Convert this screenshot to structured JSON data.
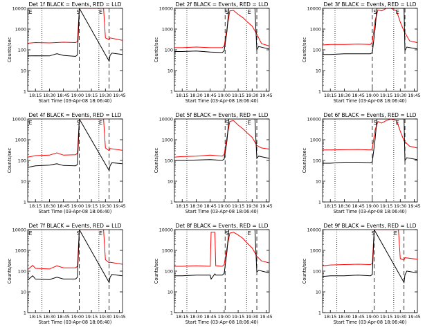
{
  "chart_data": [
    {
      "type": "line",
      "title": "Det 1f BLACK = Events, RED = LLD",
      "xlabel": "Start Time (03-Apr-08 18:06:40)",
      "ylabel": "Counts/sec",
      "xticks": [
        "18:15",
        "18:30",
        "18:45",
        "19:00",
        "19:15",
        "19:30",
        "19:45"
      ],
      "yticks": [
        "1",
        "10",
        "100",
        "1000",
        "10000"
      ],
      "ylim": [
        1,
        12000
      ],
      "yscale": "log",
      "xlim": [
        "18:06:40",
        "19:48:20"
      ],
      "markers": [
        {
          "label": "E",
          "x": "18:06:40"
        },
        {
          "label": "S",
          "x": "19:01:00"
        },
        {
          "label": "E",
          "x": "19:25:00"
        }
      ],
      "dashed_lines": [
        "19:02:00",
        "19:34:00"
      ],
      "dotted_lines": [
        "18:22:00",
        "19:23:00"
      ],
      "series": [
        {
          "color": "#ff0000",
          "x": [
            "18:06:40",
            "18:15",
            "18:30",
            "18:45",
            "18:58",
            "19:00",
            "19:02",
            "19:28",
            "19:30",
            "19:34",
            "19:35",
            "19:48"
          ],
          "y": [
            230,
            250,
            240,
            260,
            250,
            280,
            12000,
            12000,
            420,
            350,
            420,
            320
          ]
        },
        {
          "color": "#000000",
          "x": [
            "18:06:40",
            "18:15",
            "18:30",
            "18:38",
            "18:45",
            "18:58",
            "19:00",
            "19:02",
            "19:34",
            "19:35",
            "19:37",
            "19:48"
          ],
          "y": [
            55,
            56,
            55,
            70,
            58,
            52,
            62,
            12000,
            30,
            58,
            75,
            65
          ]
        }
      ]
    },
    {
      "type": "line",
      "title": "Det 2f BLACK = Events, RED = LLD",
      "xlabel": "Start Time (03-Apr-08 18:06:40)",
      "ylabel": "Counts/sec",
      "xticks": [
        "18:15",
        "18:30",
        "18:45",
        "19:00",
        "19:15",
        "19:30",
        "19:45"
      ],
      "yticks": [
        "1",
        "10",
        "100",
        "1000",
        "10000"
      ],
      "ylim": [
        1,
        12000
      ],
      "yscale": "log",
      "xlim": [
        "18:06:40",
        "19:48:20"
      ],
      "markers": [
        {
          "label": "S",
          "x": "19:03:00"
        },
        {
          "label": "E",
          "x": "19:27:00"
        }
      ],
      "dashed_lines": [
        "19:01:00",
        "19:35:00"
      ],
      "dotted_lines": [
        "18:20:00",
        "19:24:00"
      ],
      "series": [
        {
          "color": "#ff0000",
          "x": [
            "18:06:40",
            "18:15",
            "18:30",
            "18:45",
            "18:58",
            "19:00",
            "19:03",
            "19:06",
            "19:10",
            "19:15",
            "19:20",
            "19:25",
            "19:30",
            "19:35",
            "19:40",
            "19:48"
          ],
          "y": [
            140,
            140,
            150,
            140,
            140,
            170,
            1200,
            9000,
            9500,
            6000,
            4200,
            2500,
            1600,
            650,
            220,
            170
          ]
        },
        {
          "color": "#000000",
          "x": [
            "18:06:40",
            "18:15",
            "18:30",
            "18:45",
            "18:58",
            "19:00",
            "19:03",
            "19:05",
            "19:33",
            "19:35",
            "19:37",
            "19:48"
          ],
          "y": [
            90,
            90,
            95,
            85,
            80,
            100,
            900,
            12000,
            12000,
            110,
            160,
            120
          ]
        }
      ]
    },
    {
      "type": "line",
      "title": "Det 3f BLACK = Events, RED = LLD",
      "xlabel": "Start Time (03-Apr-08 18:06:40)",
      "ylabel": "Counts/sec",
      "xticks": [
        "18:15",
        "18:30",
        "18:45",
        "19:00",
        "19:15",
        "19:30",
        "19:45"
      ],
      "yticks": [
        "1",
        "10",
        "100",
        "1000",
        "10000"
      ],
      "ylim": [
        1,
        12000
      ],
      "yscale": "log",
      "xlim": [
        "18:06:40",
        "19:48:20"
      ],
      "markers": [
        {
          "label": "S",
          "x": "19:03:00"
        },
        {
          "label": "E",
          "x": "19:27:00"
        }
      ],
      "dashed_lines": [
        "19:00:00",
        "19:35:00"
      ],
      "dotted_lines": [
        "18:20:00",
        "19:23:00"
      ],
      "series": [
        {
          "color": "#ff0000",
          "x": [
            "18:06:40",
            "18:15",
            "18:30",
            "18:45",
            "18:58",
            "19:00",
            "19:03",
            "19:06",
            "19:10",
            "19:15",
            "19:20",
            "19:26",
            "19:30",
            "19:34",
            "19:40",
            "19:48"
          ],
          "y": [
            190,
            200,
            200,
            210,
            200,
            260,
            3000,
            10000,
            9000,
            12000,
            12000,
            9000,
            2500,
            900,
            300,
            250
          ]
        },
        {
          "color": "#000000",
          "x": [
            "18:06:40",
            "18:15",
            "18:30",
            "18:45",
            "18:58",
            "19:00",
            "19:03",
            "19:05",
            "19:34",
            "19:35",
            "19:37",
            "19:48"
          ],
          "y": [
            65,
            65,
            70,
            70,
            70,
            80,
            1200,
            12000,
            12000,
            100,
            150,
            120
          ]
        }
      ]
    },
    {
      "type": "line",
      "title": "Det 4f BLACK = Events, RED = LLD",
      "xlabel": "Start Time (03-Apr-08 18:06:40)",
      "ylabel": "Counts/sec",
      "xticks": [
        "18:15",
        "18:30",
        "18:45",
        "19:00",
        "19:15",
        "19:30",
        "19:45"
      ],
      "yticks": [
        "1",
        "10",
        "100",
        "1000",
        "10000"
      ],
      "ylim": [
        1,
        12000
      ],
      "yscale": "log",
      "xlim": [
        "18:06:40",
        "19:48:20"
      ],
      "markers": [
        {
          "label": "E",
          "x": "18:06:40"
        },
        {
          "label": "S",
          "x": "19:01:00"
        },
        {
          "label": "E",
          "x": "19:25:00"
        }
      ],
      "dashed_lines": [
        "19:02:00",
        "19:34:00"
      ],
      "dotted_lines": [
        "18:22:00",
        "19:23:00"
      ],
      "series": [
        {
          "color": "#ff0000",
          "x": [
            "18:06:40",
            "18:15",
            "18:30",
            "18:38",
            "18:45",
            "18:58",
            "19:00",
            "19:02",
            "19:28",
            "19:30",
            "19:34",
            "19:35",
            "19:48"
          ],
          "y": [
            160,
            190,
            200,
            260,
            200,
            210,
            250,
            12000,
            12000,
            450,
            330,
            420,
            350
          ]
        },
        {
          "color": "#000000",
          "x": [
            "18:06:40",
            "18:15",
            "18:30",
            "18:38",
            "18:45",
            "18:58",
            "19:00",
            "19:02",
            "19:34",
            "19:35",
            "19:37",
            "19:48"
          ],
          "y": [
            50,
            60,
            65,
            75,
            62,
            60,
            70,
            12000,
            35,
            60,
            85,
            75
          ]
        }
      ]
    },
    {
      "type": "line",
      "title": "Det 5f BLACK = Events, RED = LLD",
      "xlabel": "Start Time (03-Apr-08 18:06:40)",
      "ylabel": "Counts/sec",
      "xticks": [
        "18:15",
        "18:30",
        "18:45",
        "19:00",
        "19:15",
        "19:30",
        "19:45"
      ],
      "yticks": [
        "1",
        "10",
        "100",
        "1000",
        "10000"
      ],
      "ylim": [
        1,
        12000
      ],
      "yscale": "log",
      "xlim": [
        "18:06:40",
        "19:48:20"
      ],
      "markers": [
        {
          "label": "S",
          "x": "19:03:00"
        },
        {
          "label": "E",
          "x": "19:27:00"
        }
      ],
      "dashed_lines": [
        "19:01:00",
        "19:35:00"
      ],
      "dotted_lines": [
        "18:20:00",
        "19:24:00"
      ],
      "series": [
        {
          "color": "#ff0000",
          "x": [
            "18:06:40",
            "18:15",
            "18:30",
            "18:45",
            "18:58",
            "19:00",
            "19:03",
            "19:06",
            "19:10",
            "19:15",
            "19:20",
            "19:25",
            "19:30",
            "19:35",
            "19:40",
            "19:48"
          ],
          "y": [
            160,
            170,
            180,
            200,
            180,
            220,
            1500,
            9000,
            10000,
            6000,
            4000,
            2400,
            1500,
            600,
            450,
            400
          ]
        },
        {
          "color": "#000000",
          "x": [
            "18:06:40",
            "18:15",
            "18:30",
            "18:45",
            "18:58",
            "19:00",
            "19:03",
            "19:05",
            "19:33",
            "19:35",
            "19:37",
            "19:48"
          ],
          "y": [
            110,
            110,
            115,
            120,
            110,
            130,
            1000,
            12000,
            12000,
            140,
            180,
            140
          ]
        }
      ]
    },
    {
      "type": "line",
      "title": "Det 6f BLACK = Events, RED = LLD",
      "xlabel": "Start Time (03-Apr-08 18:06:40)",
      "ylabel": "Counts/sec",
      "xticks": [
        "18:15",
        "18:30",
        "18:45",
        "19:00",
        "19:15",
        "19:30",
        "19:45"
      ],
      "yticks": [
        "1",
        "10",
        "100",
        "1000",
        "10000"
      ],
      "ylim": [
        1,
        12000
      ],
      "yscale": "log",
      "xlim": [
        "18:06:40",
        "19:48:20"
      ],
      "markers": [
        {
          "label": "S",
          "x": "19:03:00"
        },
        {
          "label": "E",
          "x": "19:27:00"
        }
      ],
      "dashed_lines": [
        "19:00:00",
        "19:35:00"
      ],
      "dotted_lines": [
        "18:20:00",
        "19:23:00"
      ],
      "series": [
        {
          "color": "#ff0000",
          "x": [
            "18:06:40",
            "18:15",
            "18:30",
            "18:45",
            "18:58",
            "19:00",
            "19:03",
            "19:06",
            "19:10",
            "19:15",
            "19:20",
            "19:26",
            "19:30",
            "19:34",
            "19:40",
            "19:48"
          ],
          "y": [
            360,
            360,
            370,
            380,
            360,
            420,
            3500,
            9000,
            7500,
            10000,
            12000,
            10000,
            3000,
            1000,
            550,
            450
          ]
        },
        {
          "color": "#000000",
          "x": [
            "18:06:40",
            "18:15",
            "18:30",
            "18:45",
            "18:58",
            "19:00",
            "19:03",
            "19:05",
            "19:34",
            "19:35",
            "19:37",
            "19:48"
          ],
          "y": [
            80,
            80,
            90,
            90,
            85,
            95,
            1200,
            12000,
            12000,
            110,
            150,
            120
          ]
        }
      ]
    },
    {
      "type": "line",
      "title": "Det 7f BLACK = Events, RED = LLD",
      "xlabel": "Start Time (03-Apr-08 18:06:40)",
      "ylabel": "Counts/sec",
      "xticks": [
        "18:15",
        "18:30",
        "18:45",
        "19:00",
        "19:15",
        "19:30",
        "19:45"
      ],
      "yticks": [
        "1",
        "10",
        "100",
        "1000",
        "10000"
      ],
      "ylim": [
        1,
        12000
      ],
      "yscale": "log",
      "xlim": [
        "18:06:40",
        "19:48:20"
      ],
      "markers": [
        {
          "label": "E",
          "x": "18:06:40"
        },
        {
          "label": "S",
          "x": "19:01:00"
        },
        {
          "label": "E",
          "x": "19:25:00"
        }
      ],
      "dashed_lines": [
        "19:02:00",
        "19:34:00"
      ],
      "dotted_lines": [
        "18:22:00",
        "19:23:00"
      ],
      "series": [
        {
          "color": "#ff0000",
          "x": [
            "18:06:40",
            "18:12",
            "18:15",
            "18:30",
            "18:38",
            "18:45",
            "18:58",
            "19:00",
            "19:02",
            "19:28",
            "19:30",
            "19:34",
            "19:35",
            "19:48"
          ],
          "y": [
            130,
            210,
            150,
            140,
            200,
            160,
            160,
            190,
            12000,
            12000,
            400,
            280,
            300,
            240
          ]
        },
        {
          "color": "#000000",
          "x": [
            "18:06:40",
            "18:12",
            "18:15",
            "18:30",
            "18:38",
            "18:45",
            "18:58",
            "19:00",
            "19:02",
            "19:34",
            "19:35",
            "19:37",
            "19:48"
          ],
          "y": [
            40,
            65,
            45,
            42,
            55,
            45,
            45,
            55,
            12000,
            30,
            55,
            75,
            65
          ]
        }
      ]
    },
    {
      "type": "line",
      "title": "Det 8f BLACK = Events, RED = LLD",
      "xlabel": "Start Time (03-Apr-08 18:06:40)",
      "ylabel": "Counts/sec",
      "xticks": [
        "18:15",
        "18:30",
        "18:45",
        "19:00",
        "19:15",
        "19:30",
        "19:45"
      ],
      "yticks": [
        "1",
        "10",
        "100",
        "1000",
        "10000"
      ],
      "ylim": [
        1,
        12000
      ],
      "yscale": "log",
      "xlim": [
        "18:06:40",
        "19:48:20"
      ],
      "markers": [
        {
          "label": "S",
          "x": "19:03:00"
        },
        {
          "label": "E",
          "x": "19:27:00"
        }
      ],
      "dashed_lines": [
        "19:01:00",
        "19:35:00"
      ],
      "dotted_lines": [
        "18:20:00",
        "19:24:00"
      ],
      "series": [
        {
          "color": "#ff0000",
          "x": [
            "18:06:40",
            "18:15",
            "18:30",
            "18:45",
            "18:46",
            "18:50",
            "18:51",
            "18:58",
            "19:00",
            "19:03",
            "19:06",
            "19:10",
            "19:15",
            "19:20",
            "19:25",
            "19:30",
            "19:35",
            "19:40",
            "19:48"
          ],
          "y": [
            190,
            190,
            200,
            190,
            9000,
            9000,
            200,
            190,
            230,
            1500,
            8000,
            9000,
            6500,
            4500,
            2500,
            1500,
            600,
            350,
            280
          ]
        },
        {
          "color": "#000000",
          "x": [
            "18:06:40",
            "18:15",
            "18:30",
            "18:45",
            "18:46",
            "18:50",
            "18:51",
            "18:58",
            "19:00",
            "19:03",
            "19:05",
            "19:33",
            "19:35",
            "19:37",
            "19:48"
          ],
          "y": [
            65,
            65,
            70,
            70,
            45,
            80,
            70,
            70,
            85,
            1000,
            12000,
            12000,
            100,
            120,
            90
          ]
        }
      ]
    },
    {
      "type": "line",
      "title": "Det 9f BLACK = Events, RED = LLD",
      "xlabel": "Start Time (03-Apr-08 18:06:40)",
      "ylabel": "Counts/sec",
      "xticks": [
        "18:15",
        "18:30",
        "18:45",
        "19:00",
        "19:15",
        "19:30",
        "19:45"
      ],
      "yticks": [
        "1",
        "10",
        "100",
        "1000",
        "10000"
      ],
      "ylim": [
        1,
        12000
      ],
      "yscale": "log",
      "xlim": [
        "18:06:40",
        "19:48:20"
      ],
      "markers": [
        {
          "label": "S",
          "x": "19:01:00"
        },
        {
          "label": "E",
          "x": "19:25:00"
        }
      ],
      "dashed_lines": [
        "19:02:00",
        "19:34:00"
      ],
      "dotted_lines": [
        "18:22:00",
        "19:23:00"
      ],
      "series": [
        {
          "color": "#ff0000",
          "x": [
            "18:06:40",
            "18:15",
            "18:30",
            "18:45",
            "18:58",
            "19:00",
            "19:02",
            "19:28",
            "19:30",
            "19:34",
            "19:35",
            "19:48"
          ],
          "y": [
            200,
            220,
            230,
            240,
            230,
            260,
            12000,
            12000,
            450,
            380,
            500,
            420
          ]
        },
        {
          "color": "#000000",
          "x": [
            "18:06:40",
            "18:15",
            "18:30",
            "18:45",
            "18:58",
            "19:00",
            "19:02",
            "19:34",
            "19:35",
            "19:37",
            "19:48"
          ],
          "y": [
            60,
            65,
            65,
            70,
            65,
            75,
            12000,
            30,
            70,
            110,
            90
          ]
        }
      ]
    }
  ]
}
